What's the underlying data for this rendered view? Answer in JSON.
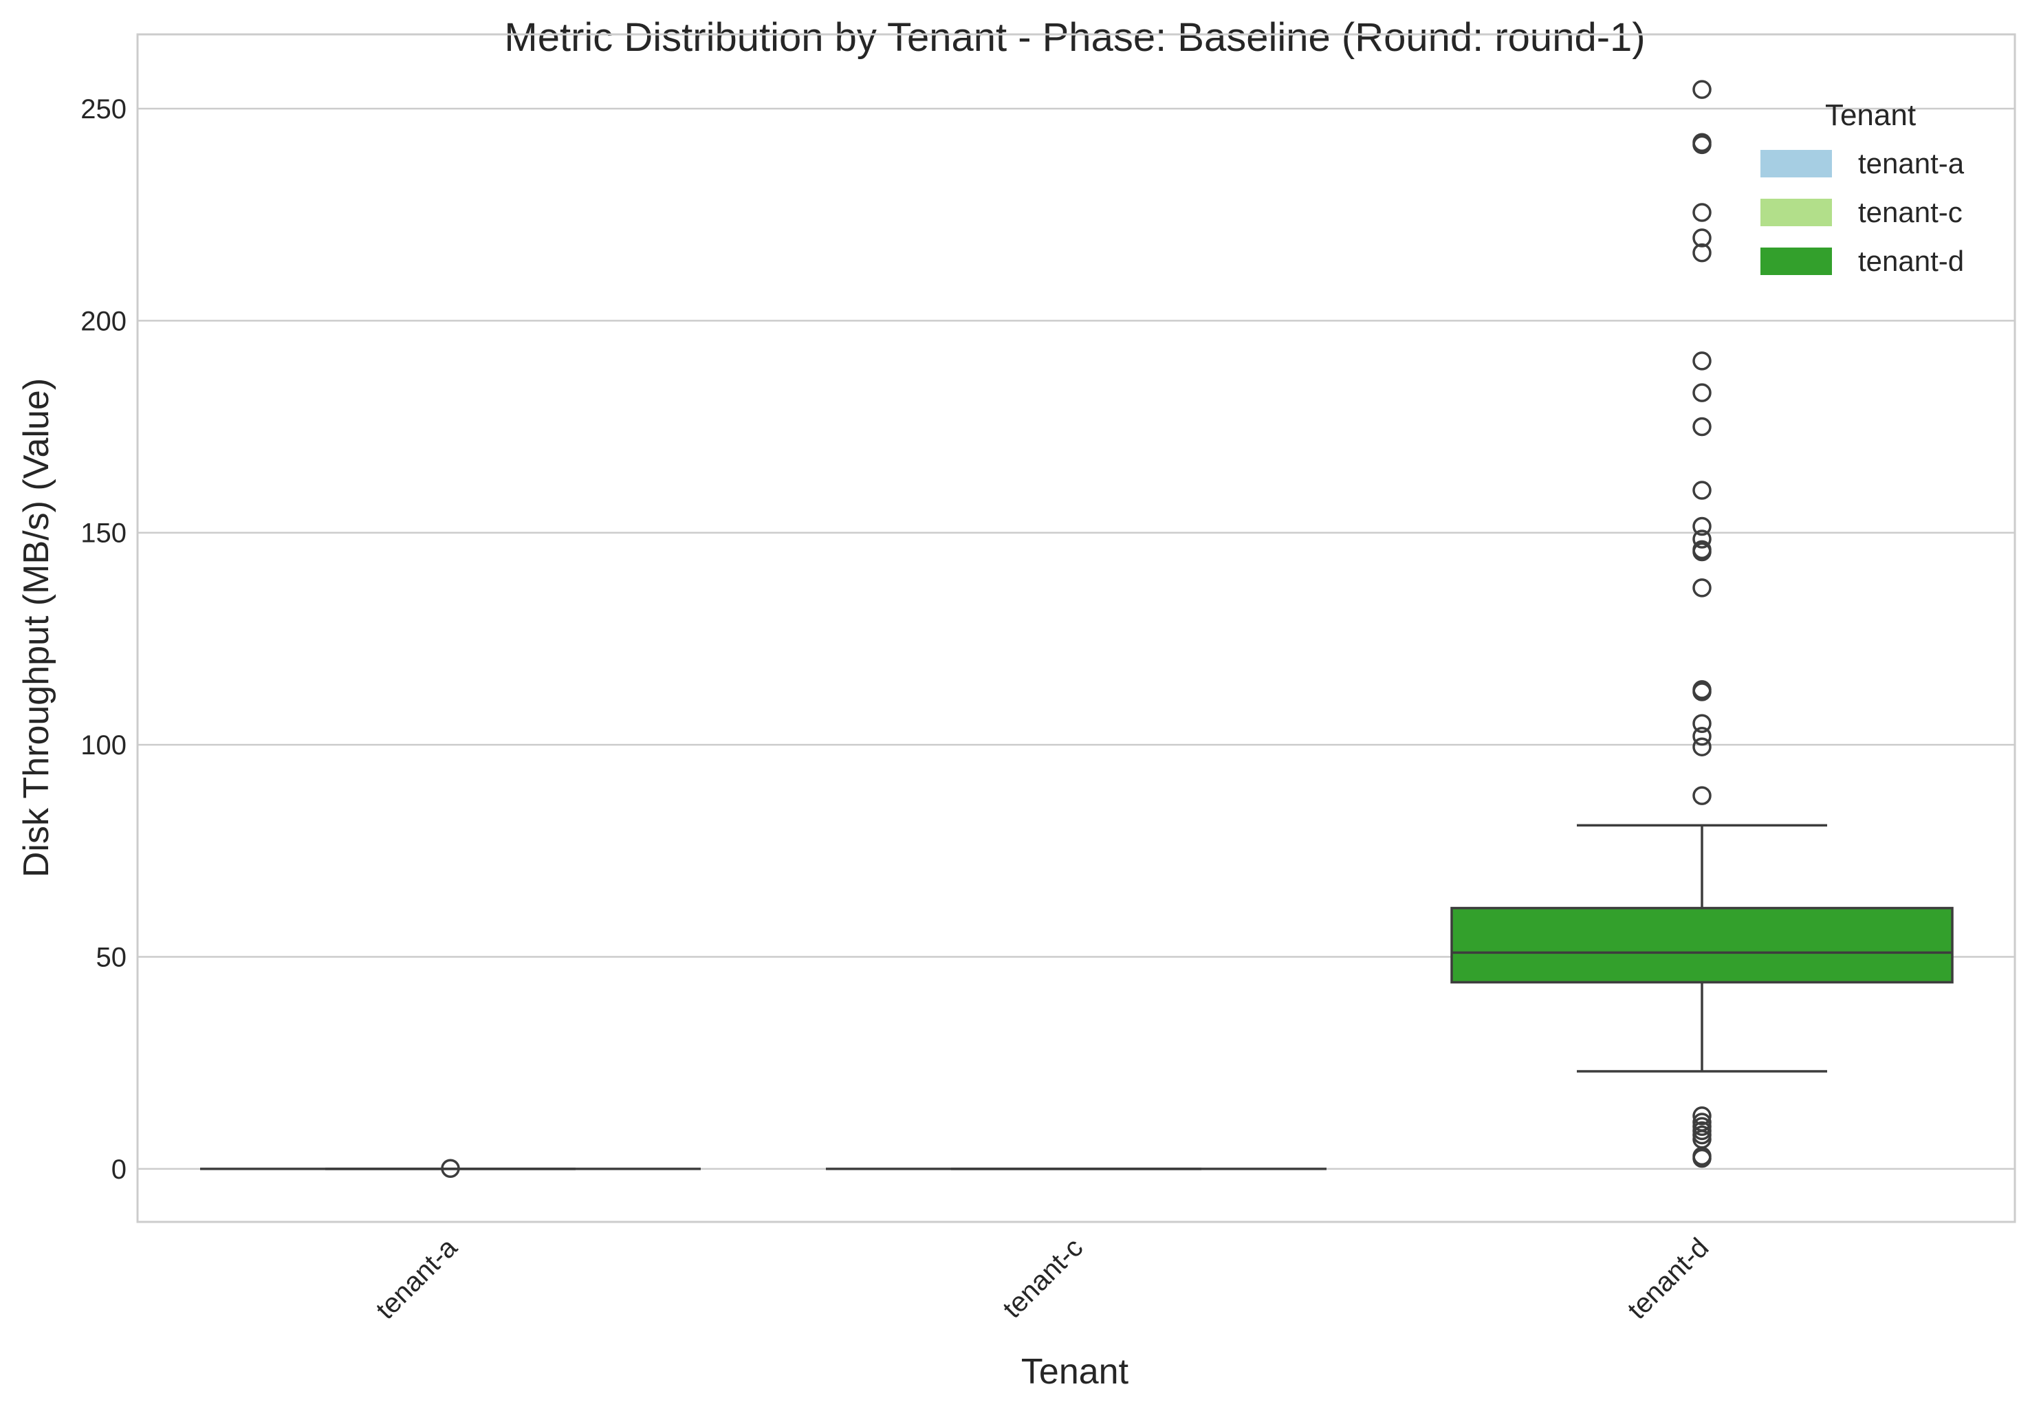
{
  "chart_data": {
    "type": "box",
    "title": "Metric Distribution by Tenant - Phase: Baseline (Round: round-1)",
    "xlabel": "Tenant",
    "ylabel": "Disk Throughput (MB/s) (Value)",
    "ylim": [
      -12.5,
      267.5
    ],
    "yticks": [
      0,
      50,
      100,
      150,
      200,
      250
    ],
    "grid": true,
    "legend": {
      "title": "Tenant",
      "placement": "top-right",
      "entries": [
        {
          "label": "tenant-a",
          "color": "#a6cee3"
        },
        {
          "label": "tenant-c",
          "color": "#b2df8a"
        },
        {
          "label": "tenant-d",
          "color": "#33a02c"
        }
      ]
    },
    "categories": [
      "tenant-a",
      "tenant-c",
      "tenant-d"
    ],
    "boxes": [
      {
        "name": "tenant-a",
        "color": "#a6cee3",
        "whisker_low": 0,
        "q1": 0,
        "median": 0,
        "q3": 0,
        "whisker_high": 0,
        "outliers": [
          0.1
        ]
      },
      {
        "name": "tenant-c",
        "color": "#b2df8a",
        "whisker_low": 0,
        "q1": 0,
        "median": 0,
        "q3": 0,
        "whisker_high": 0,
        "outliers": []
      },
      {
        "name": "tenant-d",
        "color": "#33a02c",
        "whisker_low": 23,
        "q1": 44,
        "median": 51,
        "q3": 61.5,
        "whisker_high": 81,
        "outliers": [
          254.5,
          242,
          241.5,
          225.5,
          219.5,
          216,
          190.5,
          183,
          175,
          160,
          151.5,
          148.5,
          146,
          145.5,
          137,
          113,
          112.5,
          105,
          102,
          99.5,
          88,
          12.5,
          11,
          10,
          9,
          8,
          7,
          3,
          2.5
        ]
      }
    ]
  }
}
